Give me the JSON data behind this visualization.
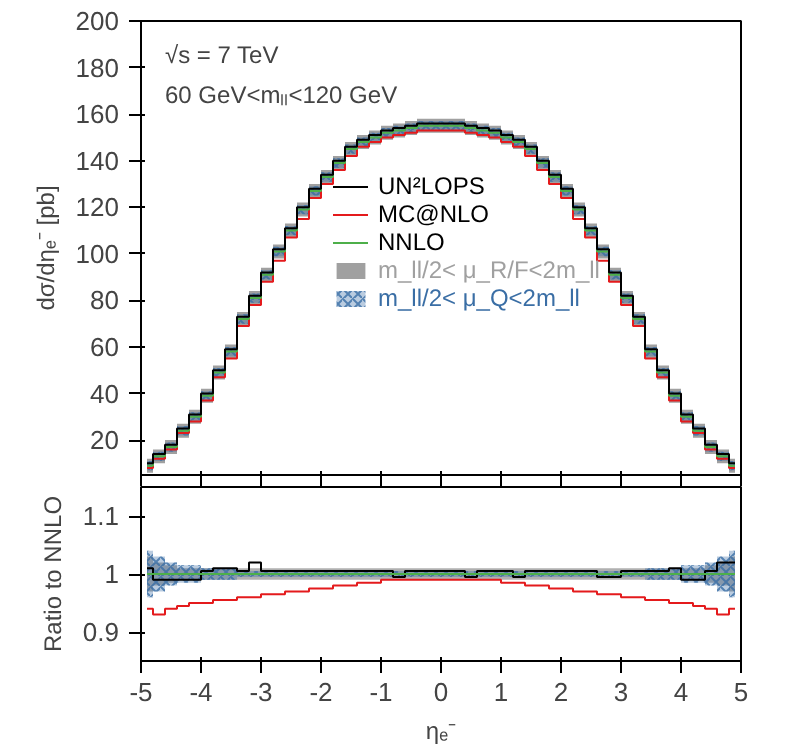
{
  "chart_data": [
    {
      "type": "step",
      "ylabel": "dσ/dηₑ⁻ [pb]",
      "annotations": [
        "√s = 7 TeV",
        "60 GeV<mₗₗ<120 GeV"
      ],
      "x": [
        -4.9,
        -4.7,
        -4.5,
        -4.3,
        -4.1,
        -3.9,
        -3.7,
        -3.5,
        -3.3,
        -3.1,
        -2.9,
        -2.7,
        -2.5,
        -2.3,
        -2.1,
        -1.9,
        -1.7,
        -1.5,
        -1.3,
        -1.1,
        -0.9,
        -0.7,
        -0.5,
        -0.3,
        -0.1,
        0.1,
        0.3,
        0.5,
        0.7,
        0.9,
        1.1,
        1.3,
        1.5,
        1.7,
        1.9,
        2.1,
        2.3,
        2.5,
        2.7,
        2.9,
        3.1,
        3.3,
        3.5,
        3.7,
        3.9,
        4.1,
        4.3,
        4.5,
        4.7,
        4.9
      ],
      "xlim": [
        -5,
        5
      ],
      "xticks": [
        -5,
        -4,
        -3,
        -2,
        -1,
        0,
        1,
        2,
        3,
        4,
        5
      ],
      "ylim": [
        5,
        200
      ],
      "yticks": [
        20,
        40,
        60,
        80,
        100,
        120,
        140,
        160,
        180,
        200
      ],
      "tick_labels": "y",
      "grid": false,
      "legend": "center",
      "series": [
        {
          "name": "UN²LOPS",
          "color": "#000000",
          "values": [
            10,
            14,
            18,
            25,
            31,
            40,
            50,
            59,
            73,
            82,
            92,
            102,
            111,
            120,
            128,
            134,
            140,
            146,
            149,
            151,
            153,
            154,
            155,
            156,
            156,
            156,
            156,
            155,
            154,
            153,
            151,
            149,
            146,
            140,
            134,
            128,
            120,
            111,
            102,
            92,
            82,
            73,
            59,
            50,
            40,
            31,
            25,
            18,
            14,
            10
          ]
        },
        {
          "name": "MC@NLO",
          "color": "#e41a1c",
          "values": [
            8,
            12,
            16,
            23,
            28,
            37,
            47,
            55,
            69,
            78,
            88,
            97,
            107,
            115,
            124,
            130,
            136,
            142,
            146,
            148,
            150,
            151,
            152,
            153,
            153,
            153,
            153,
            152,
            151,
            150,
            148,
            146,
            142,
            136,
            130,
            124,
            115,
            107,
            97,
            88,
            78,
            69,
            55,
            47,
            37,
            28,
            23,
            16,
            12,
            8
          ]
        },
        {
          "name": "NNLO",
          "color": "#4daf4a",
          "values": [
            9,
            13,
            17,
            24,
            30,
            39,
            49,
            58,
            72,
            81,
            91,
            101,
            110,
            119,
            127,
            133,
            139,
            145,
            148,
            150,
            152,
            153,
            154,
            155,
            155,
            155,
            155,
            154,
            153,
            152,
            150,
            148,
            145,
            139,
            133,
            127,
            119,
            110,
            101,
            91,
            81,
            72,
            58,
            49,
            39,
            30,
            24,
            17,
            13,
            9
          ]
        },
        {
          "name": "m_ll/2< μ_R/F<2m_ll",
          "type": "area",
          "color": "#a0a0a0",
          "values": [
            null,
            null,
            null,
            null,
            null,
            null,
            null,
            null,
            null,
            null,
            null,
            null,
            null,
            null,
            null,
            null,
            null,
            null,
            null,
            null,
            null,
            null,
            null,
            null,
            null,
            null,
            null,
            null,
            null,
            null,
            null,
            null,
            null,
            null,
            null,
            null,
            null,
            null,
            null,
            null,
            null,
            null,
            null,
            null,
            null,
            null,
            null,
            null,
            null,
            null
          ],
          "lower": [
            6,
            10,
            14,
            21,
            27,
            36,
            46,
            55,
            69,
            78,
            88,
            98,
            107,
            116,
            124,
            130,
            136,
            142,
            145,
            147,
            149,
            150,
            151,
            152,
            152,
            152,
            152,
            151,
            150,
            149,
            147,
            145,
            142,
            136,
            130,
            124,
            116,
            107,
            98,
            88,
            78,
            69,
            55,
            46,
            36,
            27,
            21,
            14,
            10,
            6
          ],
          "upper": [
            12,
            16,
            20,
            27,
            33,
            42,
            52,
            61,
            75,
            84,
            94,
            104,
            113,
            122,
            130,
            136,
            142,
            148,
            151,
            153,
            155,
            156,
            157,
            158,
            158,
            158,
            158,
            157,
            156,
            155,
            153,
            151,
            148,
            142,
            136,
            130,
            122,
            113,
            104,
            94,
            84,
            75,
            61,
            52,
            42,
            33,
            27,
            20,
            16,
            12
          ]
        },
        {
          "name": "m_ll/2< μ_Q<2m_ll",
          "type": "area",
          "color": "#3a6ea5",
          "values": [
            null,
            null,
            null,
            null,
            null,
            null,
            null,
            null,
            null,
            null,
            null,
            null,
            null,
            null,
            null,
            null,
            null,
            null,
            null,
            null,
            null,
            null,
            null,
            null,
            null,
            null,
            null,
            null,
            null,
            null,
            null,
            null,
            null,
            null,
            null,
            null,
            null,
            null,
            null,
            null,
            null,
            null,
            null,
            null,
            null,
            null,
            null,
            null,
            null,
            null
          ],
          "lower": [
            7,
            11,
            15,
            22,
            28,
            37,
            47,
            56,
            70,
            79,
            89,
            99,
            108,
            117,
            125,
            131,
            137,
            143,
            146,
            148,
            150,
            151,
            152,
            153,
            153,
            153,
            153,
            152,
            151,
            150,
            148,
            146,
            143,
            137,
            131,
            125,
            117,
            108,
            99,
            89,
            79,
            70,
            56,
            47,
            37,
            28,
            22,
            15,
            11,
            7
          ],
          "upper": [
            11,
            15,
            19,
            26,
            32,
            41,
            51,
            60,
            74,
            83,
            93,
            103,
            112,
            121,
            129,
            135,
            141,
            147,
            150,
            152,
            154,
            155,
            156,
            157,
            157,
            157,
            157,
            156,
            155,
            154,
            152,
            150,
            147,
            141,
            135,
            129,
            121,
            112,
            103,
            93,
            83,
            74,
            60,
            51,
            41,
            32,
            26,
            19,
            15,
            11
          ]
        }
      ]
    },
    {
      "type": "step",
      "ylabel": "Ratio to NNLO",
      "xlabel": "ηₑ⁻",
      "x": [
        -4.9,
        -4.7,
        -4.5,
        -4.3,
        -4.1,
        -3.9,
        -3.7,
        -3.5,
        -3.3,
        -3.1,
        -2.9,
        -2.7,
        -2.5,
        -2.3,
        -2.1,
        -1.9,
        -1.7,
        -1.5,
        -1.3,
        -1.1,
        -0.9,
        -0.7,
        -0.5,
        -0.3,
        -0.1,
        0.1,
        0.3,
        0.5,
        0.7,
        0.9,
        1.1,
        1.3,
        1.5,
        1.7,
        1.9,
        2.1,
        2.3,
        2.5,
        2.7,
        2.9,
        3.1,
        3.3,
        3.5,
        3.7,
        3.9,
        4.1,
        4.3,
        4.5,
        4.7,
        4.9
      ],
      "xlim": [
        -5,
        5
      ],
      "xticks": [
        -5,
        -4,
        -3,
        -2,
        -1,
        0,
        1,
        2,
        3,
        4,
        5
      ],
      "ylim": [
        0.85,
        1.15
      ],
      "yticks": [
        0.9,
        {
          "value": 1,
          "label": "1"
        },
        1.1
      ],
      "grid": false,
      "series": [
        {
          "type": "area",
          "color": "#b0b0b0",
          "values": [
            null,
            null,
            null,
            null,
            null,
            null,
            null,
            null,
            null,
            null,
            null,
            null,
            null,
            null,
            null,
            null,
            null,
            null,
            null,
            null,
            null,
            null,
            null,
            null,
            null,
            null,
            null,
            null,
            null,
            null,
            null,
            null,
            null,
            null,
            null,
            null,
            null,
            null,
            null,
            null,
            null,
            null,
            null,
            null,
            null,
            null,
            null,
            null,
            null,
            null
          ],
          "lower": [
            0.97,
            0.98,
            0.985,
            0.99,
            0.99,
            0.99,
            0.99,
            0.99,
            0.99,
            0.99,
            0.99,
            0.99,
            0.99,
            0.99,
            0.99,
            0.99,
            0.99,
            0.99,
            0.99,
            0.99,
            0.99,
            0.99,
            0.99,
            0.99,
            0.99,
            0.99,
            0.99,
            0.99,
            0.99,
            0.99,
            0.99,
            0.99,
            0.99,
            0.99,
            0.99,
            0.99,
            0.99,
            0.99,
            0.99,
            0.99,
            0.99,
            0.99,
            0.99,
            0.99,
            0.99,
            0.99,
            0.99,
            0.985,
            0.98,
            0.97
          ],
          "upper": [
            1.03,
            1.02,
            1.015,
            1.01,
            1.01,
            1.01,
            1.01,
            1.01,
            1.01,
            1.01,
            1.01,
            1.01,
            1.01,
            1.01,
            1.01,
            1.01,
            1.01,
            1.01,
            1.01,
            1.01,
            1.01,
            1.01,
            1.01,
            1.01,
            1.01,
            1.01,
            1.01,
            1.01,
            1.01,
            1.01,
            1.01,
            1.01,
            1.01,
            1.01,
            1.01,
            1.01,
            1.01,
            1.01,
            1.01,
            1.01,
            1.01,
            1.01,
            1.01,
            1.01,
            1.01,
            1.01,
            1.01,
            1.015,
            1.02,
            1.03
          ]
        },
        {
          "type": "area",
          "color": "#3a6ea5",
          "values": [
            null,
            null,
            null,
            null,
            null,
            null,
            null,
            null,
            null,
            null,
            null,
            null,
            null,
            null,
            null,
            null,
            null,
            null,
            null,
            null,
            null,
            null,
            null,
            null,
            null,
            null,
            null,
            null,
            null,
            null,
            null,
            null,
            null,
            null,
            null,
            null,
            null,
            null,
            null,
            null,
            null,
            null,
            null,
            null,
            null,
            null,
            null,
            null,
            null,
            null
          ],
          "lower": [
            0.96,
            0.97,
            0.98,
            0.985,
            0.985,
            0.99,
            0.99,
            0.99,
            0.995,
            0.995,
            0.995,
            0.995,
            0.995,
            0.995,
            0.995,
            0.995,
            0.995,
            0.995,
            0.995,
            0.995,
            0.995,
            0.995,
            0.995,
            0.995,
            0.995,
            0.995,
            0.995,
            0.995,
            0.995,
            0.995,
            0.995,
            0.995,
            0.995,
            0.995,
            0.995,
            0.995,
            0.995,
            0.995,
            0.995,
            0.995,
            0.995,
            0.995,
            0.99,
            0.99,
            0.99,
            0.985,
            0.985,
            0.98,
            0.97,
            0.96
          ],
          "upper": [
            1.04,
            1.03,
            1.02,
            1.015,
            1.015,
            1.01,
            1.01,
            1.01,
            1.005,
            1.005,
            1.005,
            1.005,
            1.005,
            1.005,
            1.005,
            1.005,
            1.005,
            1.005,
            1.005,
            1.005,
            1.005,
            1.005,
            1.005,
            1.005,
            1.005,
            1.005,
            1.005,
            1.005,
            1.005,
            1.005,
            1.005,
            1.005,
            1.005,
            1.005,
            1.005,
            1.005,
            1.005,
            1.005,
            1.005,
            1.005,
            1.005,
            1.005,
            1.01,
            1.01,
            1.01,
            1.015,
            1.015,
            1.02,
            1.03,
            1.04
          ]
        },
        {
          "color": "#e41a1c",
          "values": [
            0.94,
            0.93,
            0.94,
            0.945,
            0.95,
            0.95,
            0.955,
            0.955,
            0.96,
            0.96,
            0.965,
            0.965,
            0.97,
            0.97,
            0.975,
            0.975,
            0.98,
            0.98,
            0.985,
            0.985,
            0.99,
            0.99,
            0.99,
            0.99,
            0.99,
            0.99,
            0.99,
            0.99,
            0.99,
            0.99,
            0.985,
            0.985,
            0.98,
            0.98,
            0.975,
            0.975,
            0.97,
            0.97,
            0.965,
            0.965,
            0.96,
            0.96,
            0.955,
            0.955,
            0.95,
            0.95,
            0.945,
            0.94,
            0.93,
            0.94
          ]
        },
        {
          "color": "#000000",
          "values": [
            1.01,
            0.99,
            0.99,
            0.99,
            0.99,
            1.005,
            1.01,
            1.01,
            1.005,
            1.02,
            1.005,
            1.005,
            1.005,
            1.005,
            1.005,
            1.005,
            1.005,
            1.005,
            1.005,
            1.005,
            1.005,
            0.995,
            1.005,
            1.005,
            1.005,
            1.005,
            1.005,
            0.995,
            1.005,
            1.005,
            1.005,
            0.995,
            1.005,
            1.005,
            1.005,
            1.005,
            1.005,
            1.005,
            0.995,
            0.995,
            1.005,
            1.005,
            1.005,
            1.005,
            1.01,
            0.99,
            0.99,
            1.005,
            1.02,
            1.02
          ]
        },
        {
          "color": "#4daf4a",
          "values": [
            1,
            1,
            1,
            1,
            1,
            1,
            1,
            1,
            1,
            1,
            1,
            1,
            1,
            1,
            1,
            1,
            1,
            1,
            1,
            1,
            1,
            1,
            1,
            1,
            1,
            1,
            1,
            1,
            1,
            1,
            1,
            1,
            1,
            1,
            1,
            1,
            1,
            1,
            1,
            1,
            1,
            1,
            1,
            1,
            1,
            1,
            1,
            1,
            1,
            1
          ]
        }
      ]
    }
  ]
}
